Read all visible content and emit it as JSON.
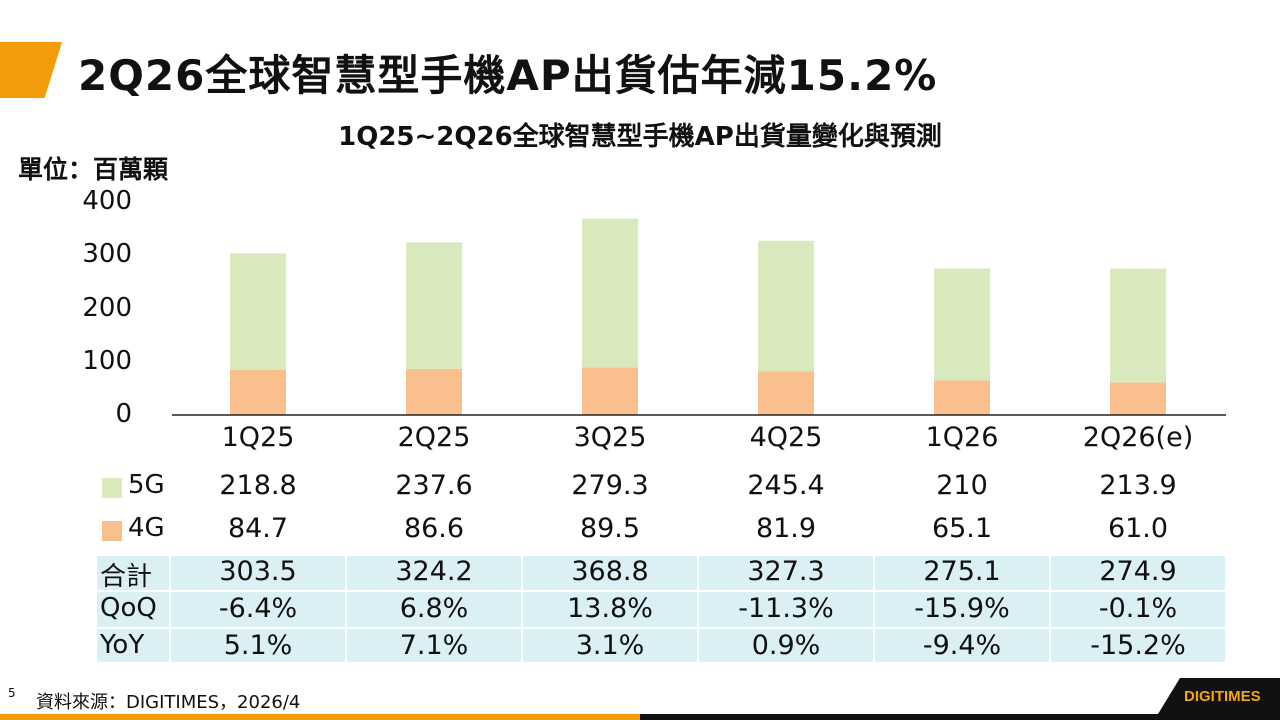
{
  "title": "2Q26全球智慧型手機AP出貨估年減15.2%",
  "footer": {
    "page": "5",
    "source": "資料來源：DIGITIMES，2026/4",
    "logo": "DIGITIMES"
  },
  "colors": {
    "accent": "#f39c0a",
    "5G": "#d7e9bd",
    "4G": "#f9c08d",
    "table_bg": "#daf0f4"
  },
  "chart_data": {
    "type": "bar",
    "stacked": true,
    "title": "1Q25~2Q26全球智慧型手機AP出貨量變化與預測",
    "ylabel": "單位：百萬顆",
    "ylim": [
      0,
      400
    ],
    "yticks": [
      "0",
      "100",
      "200",
      "300",
      "400"
    ],
    "grid": false,
    "categories": [
      "1Q25",
      "2Q25",
      "3Q25",
      "4Q25",
      "1Q26",
      "2Q26(e)"
    ],
    "series": [
      {
        "name": "5G",
        "values": [
          218.8,
          237.6,
          279.3,
          245.4,
          210,
          213.9
        ],
        "labels": [
          "218.8",
          "237.6",
          "279.3",
          "245.4",
          "210",
          "213.9"
        ]
      },
      {
        "name": "4G",
        "values": [
          84.7,
          86.6,
          89.5,
          81.9,
          65.1,
          61.0
        ],
        "labels": [
          "84.7",
          "86.6",
          "89.5",
          "81.9",
          "65.1",
          "61.0"
        ]
      }
    ],
    "table": [
      {
        "label": "合計",
        "values": [
          "303.5",
          "324.2",
          "368.8",
          "327.3",
          "275.1",
          "274.9"
        ]
      },
      {
        "label": "QoQ",
        "values": [
          "-6.4%",
          "6.8%",
          "13.8%",
          "-11.3%",
          "-15.9%",
          "-0.1%"
        ]
      },
      {
        "label": "YoY",
        "values": [
          "5.1%",
          "7.1%",
          "3.1%",
          "0.9%",
          "-9.4%",
          "-15.2%"
        ]
      }
    ]
  }
}
